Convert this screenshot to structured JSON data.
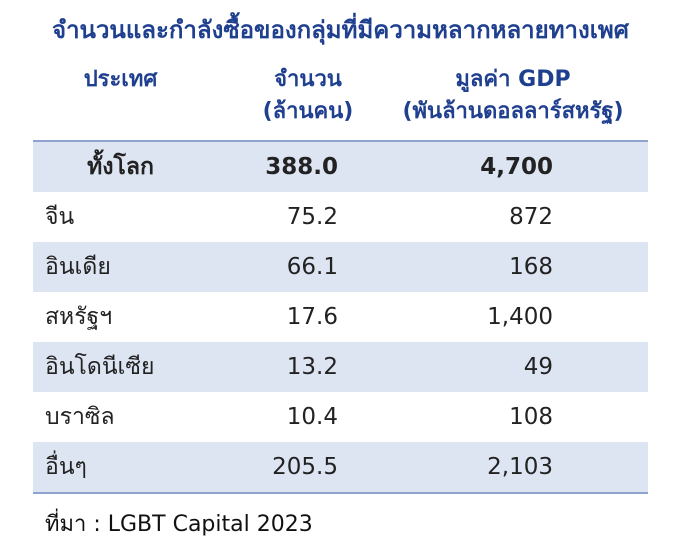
{
  "title": "จำนวนและกำลังซื้อของกลุ่มที่มีความหลากหลายทางเพศ",
  "table": {
    "header": [
      [
        "ประเทศ"
      ],
      [
        "จำนวน",
        "(ล้านคน)"
      ],
      [
        "มูลค่า GDP",
        "(พันล้านดอลลาร์สหรัฐ)"
      ]
    ],
    "rows": [
      [
        "ทั้งโลก",
        "388.0",
        "4,700"
      ],
      [
        "จีน",
        "75.2",
        "872"
      ],
      [
        "อินเดีย",
        "66.1",
        "168"
      ],
      [
        "สหรัฐฯ",
        "17.6",
        "1,400"
      ],
      [
        "อินโดนีเซีย",
        "13.2",
        "49"
      ],
      [
        "บราซิล",
        "10.4",
        "108"
      ],
      [
        "อื่นๆ",
        "205.5",
        "2,103"
      ]
    ]
  },
  "source": "ที่มา : LGBT Capital 2023"
}
